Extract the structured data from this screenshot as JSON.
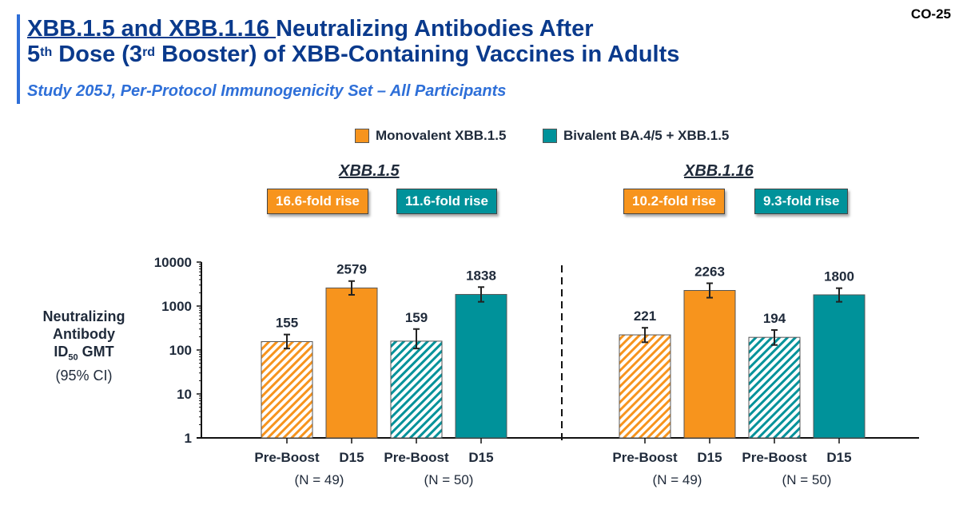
{
  "slide_number": "CO-25",
  "title": {
    "line1_underlined": "XBB.1.5 and XBB.1.16 ",
    "line1_rest": "Neutralizing Antibodies After",
    "line2_part1": "5",
    "line2_sup1": "th",
    "line2_part2": " Dose (3",
    "line2_sup2": "rd",
    "line2_part3": " Booster) of XBB-Containing Vaccines in Adults",
    "subtitle": "Study 205J, Per-Protocol Immunogenicity Set – All Participants"
  },
  "colors": {
    "monovalent": "#f7941d",
    "bivalent": "#00929a",
    "title": "#0a3a8c",
    "subtitle": "#2e6fd8",
    "text": "#1f2a3a"
  },
  "legend": [
    {
      "label": "Monovalent XBB.1.5",
      "color": "#f7941d"
    },
    {
      "label": "Bivalent BA.4/5 + XBB.1.5",
      "color": "#00929a"
    }
  ],
  "y_axis_label": {
    "line1": "Neutralizing",
    "line2": "Antibody",
    "line3_main": "ID",
    "line3_sub": "50",
    "line3_rest": " GMT",
    "line4": "(95% CI)"
  },
  "chart_data": {
    "type": "bar",
    "scale": "log",
    "ylim": [
      1,
      10000
    ],
    "yticks": [
      "1",
      "10",
      "100",
      "1000",
      "10000"
    ],
    "ylabel": "Neutralizing Antibody ID50 GMT (95% CI)",
    "legend_position": "top",
    "groups": [
      {
        "title": "XBB.1.5",
        "fold_rises": [
          {
            "label": "16.6-fold rise",
            "series": "Monovalent XBB.1.5"
          },
          {
            "label": "11.6-fold rise",
            "series": "Bivalent BA.4/5 + XBB.1.5"
          }
        ],
        "bars": [
          {
            "category": "Pre-Boost",
            "series": "Monovalent XBB.1.5",
            "value": 155,
            "ci": [
              108,
              225
            ],
            "hatched": true
          },
          {
            "category": "D15",
            "series": "Monovalent XBB.1.5",
            "value": 2579,
            "ci": [
              1800,
              3700
            ],
            "hatched": false
          },
          {
            "category": "Pre-Boost",
            "series": "Bivalent BA.4/5 + XBB.1.5",
            "value": 159,
            "ci": [
              108,
              300
            ],
            "hatched": true
          },
          {
            "category": "D15",
            "series": "Bivalent BA.4/5 + XBB.1.5",
            "value": 1838,
            "ci": [
              1250,
              2700
            ],
            "hatched": false
          }
        ],
        "n_labels": [
          "(N = 49)",
          "(N = 50)"
        ]
      },
      {
        "title": "XBB.1.16",
        "fold_rises": [
          {
            "label": "10.2-fold rise",
            "series": "Monovalent XBB.1.5"
          },
          {
            "label": "9.3-fold rise",
            "series": "Bivalent BA.4/5 + XBB.1.5"
          }
        ],
        "bars": [
          {
            "category": "Pre-Boost",
            "series": "Monovalent XBB.1.5",
            "value": 221,
            "ci": [
              150,
              320
            ],
            "hatched": true
          },
          {
            "category": "D15",
            "series": "Monovalent XBB.1.5",
            "value": 2263,
            "ci": [
              1550,
              3300
            ],
            "hatched": false
          },
          {
            "category": "Pre-Boost",
            "series": "Bivalent BA.4/5 + XBB.1.5",
            "value": 194,
            "ci": [
              130,
              285
            ],
            "hatched": true
          },
          {
            "category": "D15",
            "series": "Bivalent BA.4/5 + XBB.1.5",
            "value": 1800,
            "ci": [
              1250,
              2550
            ],
            "hatched": false
          }
        ],
        "n_labels": [
          "(N = 49)",
          "(N = 50)"
        ]
      }
    ]
  }
}
